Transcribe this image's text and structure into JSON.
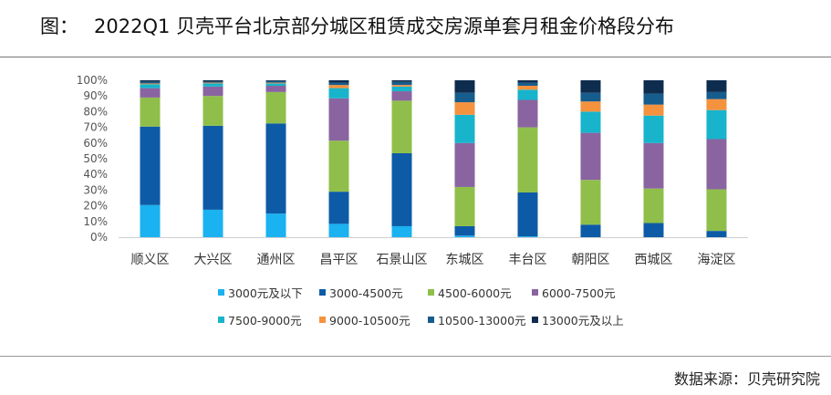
{
  "header": {
    "label": "图：",
    "title": "2022Q1 贝壳平台北京部分城区租赁成交房源单套月租金价格段分布"
  },
  "footer": {
    "source": "数据来源：贝壳研究院"
  },
  "chart_data": {
    "type": "bar",
    "stacked": true,
    "percent": true,
    "categories": [
      "顺义区",
      "大兴区",
      "通州区",
      "昌平区",
      "石景山区",
      "东城区",
      "丰台区",
      "朝阳区",
      "西城区",
      "海淀区"
    ],
    "ylim": [
      0,
      100
    ],
    "yticks": [
      "0%",
      "10%",
      "20%",
      "30%",
      "40%",
      "50%",
      "60%",
      "70%",
      "80%",
      "90%",
      "100%"
    ],
    "legend_position": "bottom",
    "series": [
      {
        "name": "3000元及以下",
        "color": "#1ab2f0",
        "values": [
          20.5,
          17.5,
          15,
          8.5,
          7,
          1,
          0.5,
          0,
          0,
          0
        ]
      },
      {
        "name": "3000-4500元",
        "color": "#0d5ba6",
        "values": [
          50,
          53.5,
          57.5,
          20.5,
          46.5,
          6,
          28,
          8,
          9,
          4
        ]
      },
      {
        "name": "4500-6000元",
        "color": "#8fbf4a",
        "values": [
          18.5,
          19,
          20,
          32.5,
          33.5,
          25,
          41.5,
          28.5,
          22,
          26.5
        ]
      },
      {
        "name": "6000-7500元",
        "color": "#8a64a0",
        "values": [
          6,
          6,
          4,
          27,
          6,
          28,
          17.5,
          30,
          29,
          32
        ]
      },
      {
        "name": "7500-9000元",
        "color": "#17b4cc",
        "values": [
          2.5,
          2,
          1.5,
          6.5,
          3,
          18,
          6.5,
          13.5,
          17.5,
          18.5
        ]
      },
      {
        "name": "9000-10500元",
        "color": "#f5923e",
        "values": [
          0.5,
          0.5,
          0.5,
          2,
          1,
          8,
          2.5,
          6.5,
          7,
          7
        ]
      },
      {
        "name": "10500-13000元",
        "color": "#165c8d",
        "values": [
          1,
          0.5,
          1,
          1.5,
          2,
          6,
          2,
          5.5,
          7,
          4.5
        ]
      },
      {
        "name": "13000元及以上",
        "color": "#0e2c4e",
        "values": [
          1,
          1,
          0.5,
          1.5,
          1,
          8,
          1.5,
          8,
          8.5,
          7.5
        ]
      }
    ]
  }
}
